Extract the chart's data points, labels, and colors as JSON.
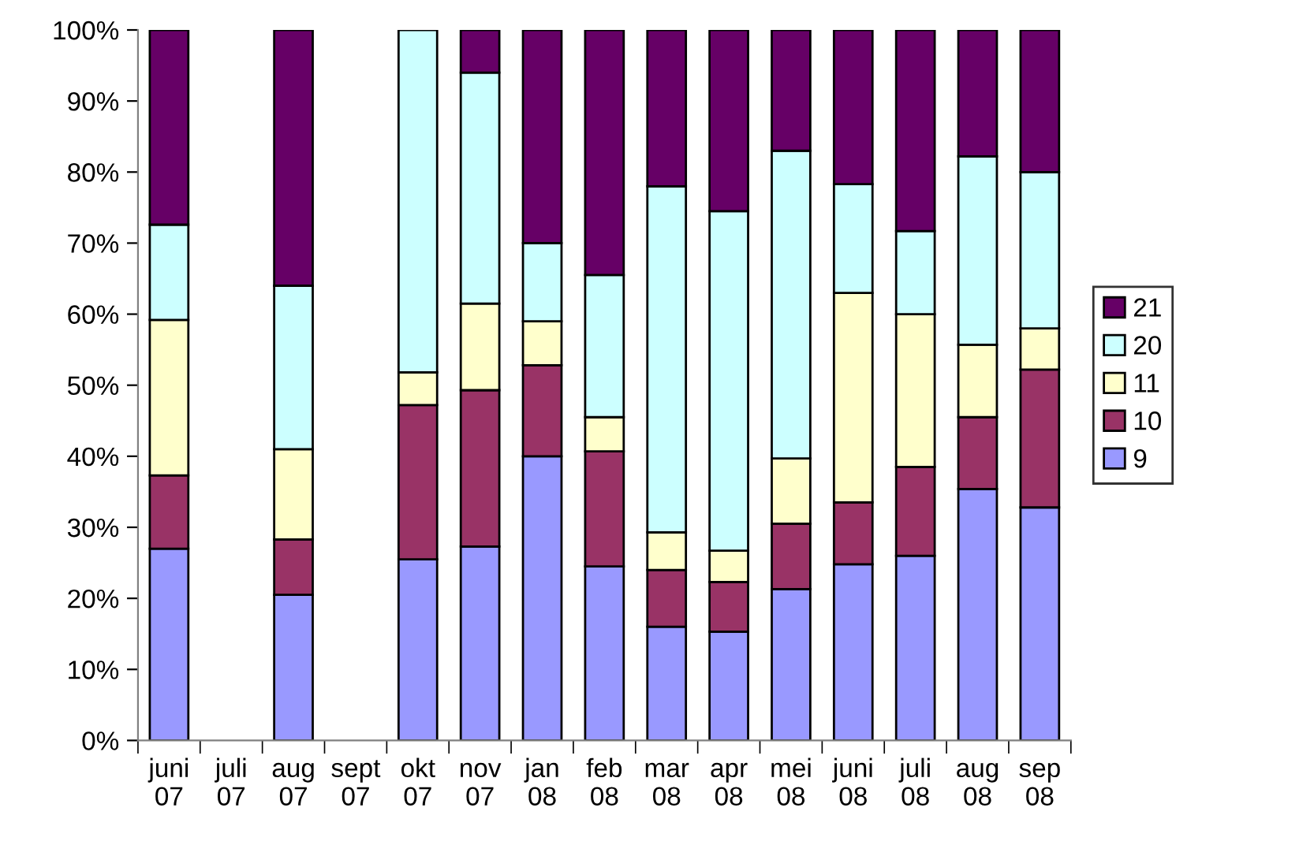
{
  "chart_data": {
    "type": "bar",
    "stacked": true,
    "categories": [
      "juni\n07",
      "juli\n07",
      "aug\n07",
      "sept\n07",
      "okt\n07",
      "nov\n07",
      "jan\n08",
      "feb\n08",
      "mar\n08",
      "apr\n08",
      "mei\n08",
      "juni\n08",
      "juli\n08",
      "aug\n08",
      "sep\n08"
    ],
    "series": [
      {
        "name": "9",
        "color": "#9999ff",
        "values": [
          27,
          null,
          20.5,
          null,
          25.5,
          27.3,
          40,
          24.5,
          16,
          15.3,
          21.3,
          24.8,
          26,
          35.4,
          32.8
        ]
      },
      {
        "name": "10",
        "color": "#993366",
        "values": [
          10.3,
          null,
          7.8,
          null,
          21.7,
          22,
          12.8,
          16.2,
          8,
          7,
          9.2,
          8.7,
          12.5,
          10.1,
          19.4
        ]
      },
      {
        "name": "11",
        "color": "#ffffcc",
        "values": [
          21.9,
          null,
          12.7,
          null,
          4.6,
          12.2,
          6.2,
          4.8,
          5.3,
          4.4,
          9.2,
          29.5,
          21.5,
          10.2,
          5.8
        ]
      },
      {
        "name": "20",
        "color": "#ccffff",
        "values": [
          13.4,
          null,
          23,
          null,
          48.2,
          32.5,
          11,
          20,
          48.7,
          47.8,
          43.3,
          15.3,
          11.7,
          26.5,
          22
        ]
      },
      {
        "name": "21",
        "color": "#660066",
        "values": [
          27.4,
          null,
          36,
          null,
          null,
          6,
          30,
          34.5,
          22,
          25.5,
          17,
          21.7,
          28.3,
          17.8,
          20
        ]
      }
    ],
    "ylim": [
      0,
      100
    ],
    "yticks": [
      {
        "value": 0,
        "label": "0%"
      },
      {
        "value": 10,
        "label": "10%"
      },
      {
        "value": 20,
        "label": "20%"
      },
      {
        "value": 30,
        "label": "30%"
      },
      {
        "value": 40,
        "label": "40%"
      },
      {
        "value": 50,
        "label": "50%"
      },
      {
        "value": 60,
        "label": "60%"
      },
      {
        "value": 70,
        "label": "70%"
      },
      {
        "value": 80,
        "label": "80%"
      },
      {
        "value": 90,
        "label": "90%"
      },
      {
        "value": 100,
        "label": "100%"
      }
    ],
    "grid": false,
    "legend": "right"
  }
}
